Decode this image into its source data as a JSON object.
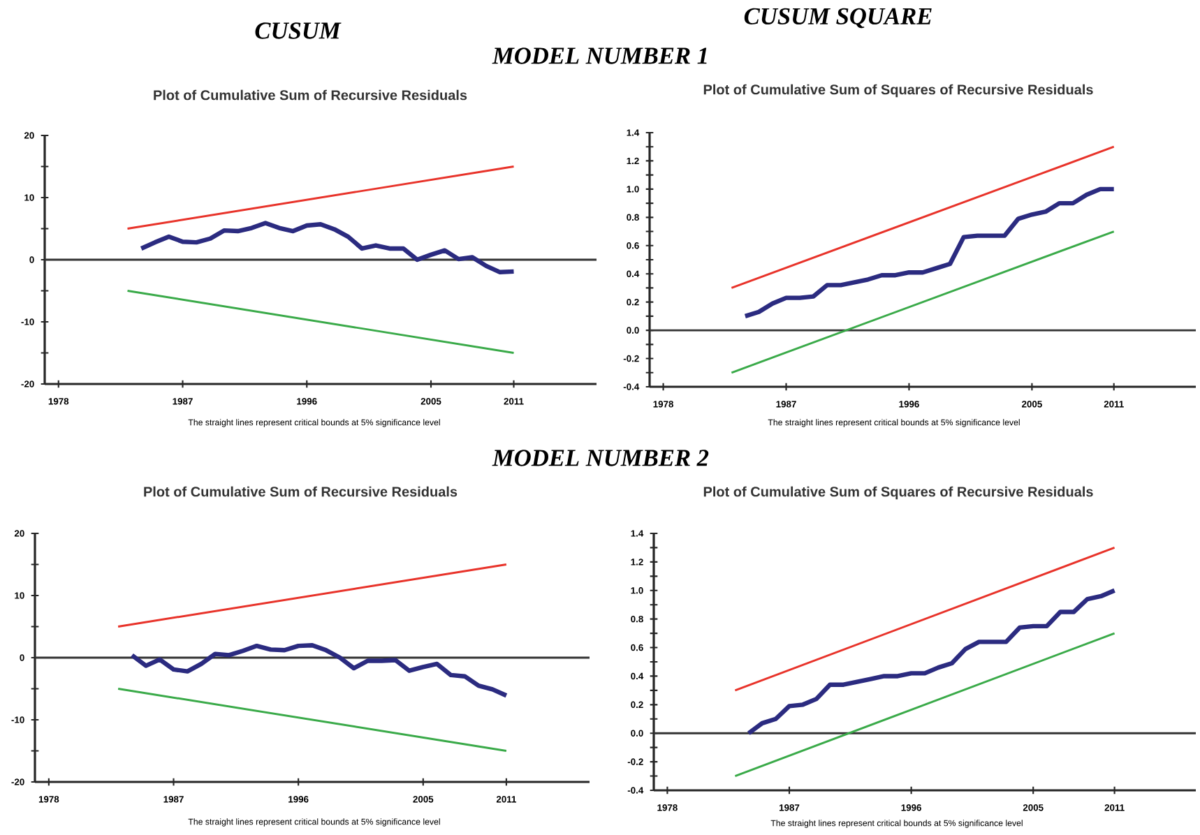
{
  "chart_data": [
    {
      "type": "line",
      "title": "Plot of Cumulative Sum of Recursive Residuals",
      "annotations": [
        "CUSUM",
        "MODEL NUMBER 1",
        "The straight lines represent critical bounds at 5% significance level"
      ],
      "marker": "none",
      "xlim": [
        1977,
        2017
      ],
      "xticks": [
        1978,
        1987,
        1996,
        2005,
        2011
      ],
      "ylim": [
        -20,
        20
      ],
      "yticks": [
        -20,
        {
          "value": -15,
          "label": null
        },
        -10,
        {
          "value": -5,
          "label": null
        },
        0,
        {
          "value": 5,
          "label": null
        },
        10,
        {
          "value": 15,
          "label": null
        },
        20
      ],
      "ref_lines": [
        {
          "axis": "y",
          "value": 0,
          "color": "#333333"
        }
      ],
      "series": [
        {
          "color": "#e8332a",
          "x": [
            1983,
            2011
          ],
          "values": [
            5,
            15
          ]
        },
        {
          "color": "#3aaa49",
          "x": [
            1983,
            2011
          ],
          "values": [
            -5,
            -15
          ]
        },
        {
          "color": "#2b2b80",
          "x": [
            1984,
            1985,
            1986,
            1987,
            1988,
            1989,
            1990,
            1991,
            1992,
            1993,
            1994,
            1995,
            1996,
            1997,
            1998,
            1999,
            2000,
            2001,
            2002,
            2003,
            2004,
            2005,
            2006,
            2007,
            2008,
            2009,
            2010,
            2011
          ],
          "values": [
            1.8,
            2.8,
            3.7,
            2.9,
            2.8,
            3.4,
            4.7,
            4.6,
            5.1,
            5.9,
            5.1,
            4.6,
            5.5,
            5.7,
            4.9,
            3.7,
            1.8,
            2.3,
            1.8,
            1.8,
            0,
            0.8,
            1.5,
            0.1,
            0.4,
            -1.0,
            -2.0,
            -1.9
          ]
        }
      ]
    },
    {
      "type": "line",
      "title": "Plot of Cumulative Sum of Squares of Recursive Residuals",
      "annotations": [
        "CUSUM SQUARE",
        "The straight lines represent critical bounds at 5% significance level"
      ],
      "marker": "none",
      "xlim": [
        1977,
        2017
      ],
      "xticks": [
        1978,
        1987,
        1996,
        2005,
        2011
      ],
      "ylim": [
        -0.4,
        1.4
      ],
      "yticks": [
        -0.4,
        {
          "value": -0.3,
          "label": null
        },
        -0.2,
        {
          "value": -0.1,
          "label": null
        },
        {
          "value": 0,
          "label": "0.0"
        },
        {
          "value": 0.1,
          "label": null
        },
        0.2,
        {
          "value": 0.3,
          "label": null
        },
        0.4,
        {
          "value": 0.5,
          "label": null
        },
        0.6,
        {
          "value": 0.7,
          "label": null
        },
        0.8,
        {
          "value": 0.9,
          "label": null
        },
        {
          "value": 1,
          "label": "1.0"
        },
        {
          "value": 1.1,
          "label": null
        },
        1.2,
        {
          "value": 1.3,
          "label": null
        },
        1.4
      ],
      "ref_lines": [
        {
          "axis": "y",
          "value": 0,
          "color": "#333333"
        }
      ],
      "series": [
        {
          "color": "#e8332a",
          "x": [
            1983,
            2011
          ],
          "values": [
            0.3,
            1.3
          ]
        },
        {
          "color": "#3aaa49",
          "x": [
            1983,
            2011
          ],
          "values": [
            -0.3,
            0.7
          ]
        },
        {
          "color": "#2b2b80",
          "x": [
            1984,
            1985,
            1986,
            1987,
            1988,
            1989,
            1990,
            1991,
            1992,
            1993,
            1994,
            1995,
            1996,
            1997,
            1998,
            1999,
            2000,
            2001,
            2002,
            2003,
            2004,
            2005,
            2006,
            2007,
            2008,
            2009,
            2010,
            2011
          ],
          "values": [
            0.1,
            0.13,
            0.19,
            0.23,
            0.23,
            0.24,
            0.32,
            0.32,
            0.34,
            0.36,
            0.39,
            0.39,
            0.41,
            0.41,
            0.44,
            0.47,
            0.66,
            0.67,
            0.67,
            0.67,
            0.79,
            0.82,
            0.84,
            0.9,
            0.9,
            0.96,
            1.0,
            1.0
          ]
        }
      ]
    },
    {
      "type": "line",
      "title": "Plot of Cumulative Sum of Recursive Residuals",
      "annotations": [
        "MODEL NUMBER 2",
        "The straight lines represent critical bounds at 5% significance level"
      ],
      "marker": "none",
      "xlim": [
        1977,
        2017
      ],
      "xticks": [
        1978,
        1987,
        1996,
        2005,
        2011
      ],
      "ylim": [
        -20,
        20
      ],
      "yticks": [
        -20,
        {
          "value": -15,
          "label": null
        },
        -10,
        {
          "value": -5,
          "label": null
        },
        0,
        {
          "value": 5,
          "label": null
        },
        10,
        {
          "value": 15,
          "label": null
        },
        20
      ],
      "ref_lines": [
        {
          "axis": "y",
          "value": 0,
          "color": "#333333"
        }
      ],
      "series": [
        {
          "color": "#e8332a",
          "x": [
            1983,
            2011
          ],
          "values": [
            5,
            15
          ]
        },
        {
          "color": "#3aaa49",
          "x": [
            1983,
            2011
          ],
          "values": [
            -5,
            -15
          ]
        },
        {
          "color": "#2b2b80",
          "x": [
            1984,
            1985,
            1986,
            1987,
            1988,
            1989,
            1990,
            1991,
            1992,
            1993,
            1994,
            1995,
            1996,
            1997,
            1998,
            1999,
            2000,
            2001,
            2002,
            2003,
            2004,
            2005,
            2006,
            2007,
            2008,
            2009,
            2010,
            2011
          ],
          "values": [
            0.4,
            -1.3,
            -0.3,
            -1.9,
            -2.2,
            -1.0,
            0.6,
            0.4,
            1.1,
            1.9,
            1.3,
            1.2,
            1.9,
            2.0,
            1.2,
            0,
            -1.7,
            -0.5,
            -0.5,
            -0.4,
            -2.1,
            -1.5,
            -1.0,
            -2.8,
            -3.0,
            -4.5,
            -5.1,
            -6.1
          ]
        }
      ]
    },
    {
      "type": "line",
      "title": "Plot of Cumulative Sum of Squares of Recursive Residuals",
      "annotations": [
        "The straight lines represent critical bounds at 5% significance level"
      ],
      "marker": "none",
      "xlim": [
        1977,
        2017
      ],
      "xticks": [
        1978,
        1987,
        1996,
        2005,
        2011
      ],
      "ylim": [
        -0.4,
        1.4
      ],
      "yticks": [
        -0.4,
        {
          "value": -0.3,
          "label": null
        },
        -0.2,
        {
          "value": -0.1,
          "label": null
        },
        {
          "value": 0,
          "label": "0.0"
        },
        {
          "value": 0.1,
          "label": null
        },
        0.2,
        {
          "value": 0.3,
          "label": null
        },
        0.4,
        {
          "value": 0.5,
          "label": null
        },
        0.6,
        {
          "value": 0.7,
          "label": null
        },
        0.8,
        {
          "value": 0.9,
          "label": null
        },
        {
          "value": 1,
          "label": "1.0"
        },
        {
          "value": 1.1,
          "label": null
        },
        1.2,
        {
          "value": 1.3,
          "label": null
        },
        1.4
      ],
      "ref_lines": [
        {
          "axis": "y",
          "value": 0,
          "color": "#333333"
        }
      ],
      "series": [
        {
          "color": "#e8332a",
          "x": [
            1983,
            2011
          ],
          "values": [
            0.3,
            1.3
          ]
        },
        {
          "color": "#3aaa49",
          "x": [
            1983,
            2011
          ],
          "values": [
            -0.3,
            0.7
          ]
        },
        {
          "color": "#2b2b80",
          "x": [
            1984,
            1985,
            1986,
            1987,
            1988,
            1989,
            1990,
            1991,
            1992,
            1993,
            1994,
            1995,
            1996,
            1997,
            1998,
            1999,
            2000,
            2001,
            2002,
            2003,
            2004,
            2005,
            2006,
            2007,
            2008,
            2009,
            2010,
            2011
          ],
          "values": [
            0.0,
            0.07,
            0.1,
            0.19,
            0.2,
            0.24,
            0.34,
            0.34,
            0.36,
            0.38,
            0.4,
            0.4,
            0.42,
            0.42,
            0.46,
            0.49,
            0.59,
            0.64,
            0.64,
            0.64,
            0.74,
            0.75,
            0.75,
            0.85,
            0.85,
            0.94,
            0.96,
            1.0
          ]
        }
      ]
    }
  ]
}
